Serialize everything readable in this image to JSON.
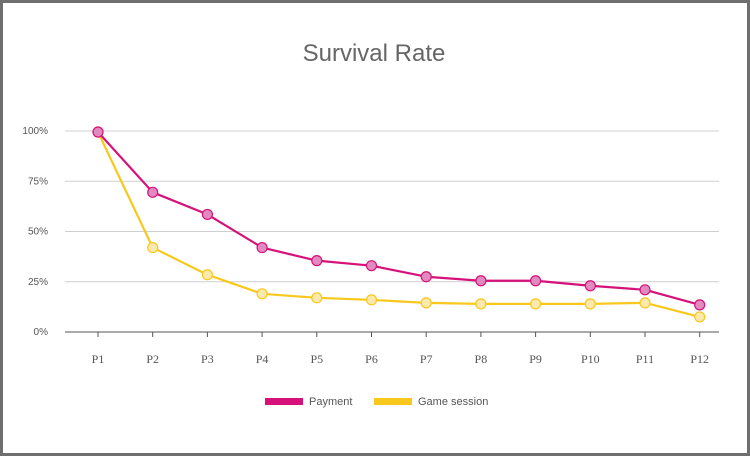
{
  "chart_data": {
    "type": "line",
    "title": "Survival Rate",
    "xlabel": "",
    "ylabel": "",
    "categories": [
      "P1",
      "P2",
      "P3",
      "P4",
      "P5",
      "P6",
      "P7",
      "P8",
      "P9",
      "P10",
      "P11",
      "P12"
    ],
    "ylim": [
      0,
      100
    ],
    "yticks": [
      0,
      25,
      50,
      75,
      100
    ],
    "ytick_labels": [
      "0%",
      "25%",
      "50%",
      "75%",
      "100%"
    ],
    "grid": true,
    "legend_position": "bottom-center",
    "series": [
      {
        "name": "Payment",
        "color": "#d6127a",
        "marker_fill": "#e18ac0",
        "values": [
          99.5,
          69.5,
          58.5,
          42,
          35.5,
          33,
          27.5,
          25.5,
          25.5,
          23,
          21,
          13.5
        ]
      },
      {
        "name": "Game session",
        "color": "#f8c81c",
        "marker_fill": "#fde8ae",
        "values": [
          99.5,
          42,
          28.5,
          19,
          17,
          16,
          14.5,
          14,
          14,
          14,
          14.5,
          7.5
        ]
      }
    ]
  }
}
